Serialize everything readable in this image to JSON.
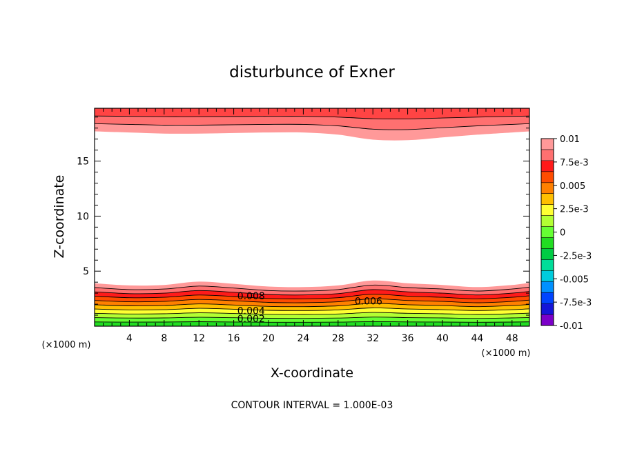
{
  "chart_data": {
    "type": "contour",
    "title": "disturbunce of Exner",
    "xlabel": "X-coordinate",
    "ylabel": "Z-coordinate",
    "x_unit_left": "(×1000 m)",
    "x_unit_right": "(×1000 m)",
    "xlim": [
      0,
      50
    ],
    "ylim": [
      0,
      19.8
    ],
    "x_ticks": [
      4,
      8,
      12,
      16,
      20,
      24,
      28,
      32,
      36,
      40,
      44,
      48
    ],
    "y_ticks": [
      5,
      10,
      15
    ],
    "contour_interval_text": "CONTOUR INTERVAL = 1.000E-03",
    "contour_labels": [
      {
        "text": "0.008",
        "x": 18.0,
        "z": 2.75
      },
      {
        "text": "0.006",
        "x": 31.5,
        "z": 2.3
      },
      {
        "text": "0.004",
        "x": 18.0,
        "z": 1.4
      },
      {
        "text": "0.002",
        "x": 18.0,
        "z": 0.7
      }
    ],
    "lower_layer": {
      "x": [
        0,
        4,
        8,
        12,
        16,
        20,
        24,
        28,
        32,
        36,
        40,
        44,
        48,
        50
      ],
      "top_z": [
        3.9,
        3.7,
        3.75,
        4.05,
        3.85,
        3.6,
        3.55,
        3.7,
        4.15,
        3.9,
        3.75,
        3.55,
        3.75,
        3.95
      ],
      "levels": [
        0.01,
        0.009,
        0.008,
        0.007,
        0.006,
        0.005,
        0.004,
        0.003,
        0.002,
        0.001
      ],
      "colors": [
        "#ff9999",
        "#ff7070",
        "#ff1a1a",
        "#ff4c00",
        "#ff8000",
        "#ffbf00",
        "#ffff33",
        "#b3ff33",
        "#66ff33",
        "#22dd22"
      ]
    },
    "upper_layer": {
      "x": [
        0,
        4,
        8,
        12,
        16,
        20,
        24,
        28,
        32,
        36,
        40,
        44,
        48,
        50
      ],
      "bottom_z": [
        17.7,
        17.6,
        17.5,
        17.5,
        17.55,
        17.6,
        17.6,
        17.4,
        16.95,
        16.9,
        17.15,
        17.4,
        17.6,
        17.7
      ],
      "levels": [
        0.01,
        0.009,
        0.008
      ],
      "colors": [
        "#ff9999",
        "#ff7070",
        "#ff4444"
      ]
    },
    "colorbar": {
      "colors_bottom_to_top": [
        "#7b00c8",
        "#1515d8",
        "#0044ff",
        "#0090ff",
        "#00ccdd",
        "#00dd99",
        "#00cc44",
        "#22dd22",
        "#66ff33",
        "#b3ff33",
        "#ffff33",
        "#ffbf00",
        "#ff8000",
        "#ff4c00",
        "#ff1a1a",
        "#ff7070",
        "#ff9999"
      ],
      "labels": [
        "-0.01",
        "-7.5e-3",
        "-0.005",
        "-2.5e-3",
        "0",
        "2.5e-3",
        "0.005",
        "7.5e-3",
        "0.01"
      ],
      "label_values": [
        -0.01,
        -0.0075,
        -0.005,
        -0.0025,
        0,
        0.0025,
        0.005,
        0.0075,
        0.01
      ]
    }
  }
}
